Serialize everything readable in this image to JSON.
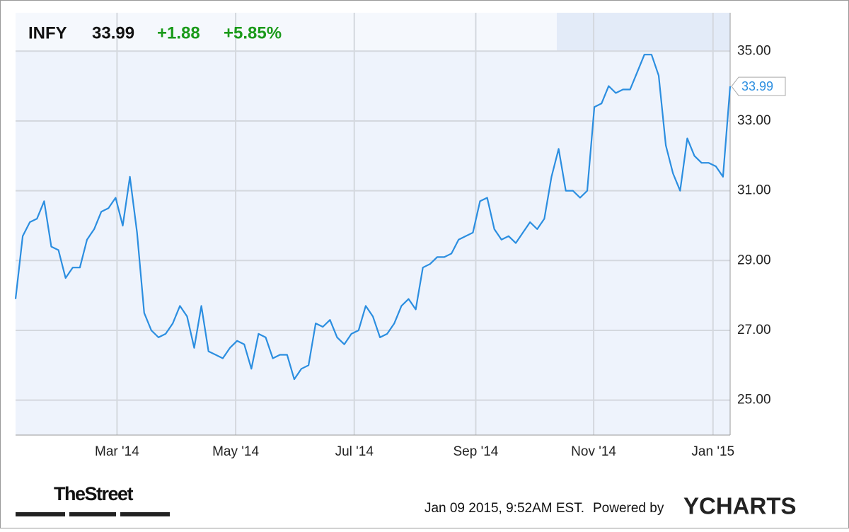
{
  "chart_data": {
    "type": "line",
    "ticker": "INFY",
    "change": "+1.88",
    "change_percent": "+5.85%",
    "timestamp": "Jan 09 2015, 9:52AM EST.",
    "powered_by": "Powered by",
    "brand": "YCHARTS",
    "publisher": "TheStreet",
    "grid": true,
    "series": [
      {
        "name": "INFY",
        "color": "#2b8ee0",
        "values": [
          27.9,
          29.7,
          30.1,
          30.2,
          30.7,
          29.4,
          29.3,
          28.5,
          28.8,
          28.8,
          29.6,
          29.9,
          30.4,
          30.5,
          30.8,
          30.0,
          31.4,
          29.8,
          27.5,
          27.0,
          26.8,
          26.9,
          27.2,
          27.7,
          27.4,
          26.5,
          27.7,
          26.4,
          26.3,
          26.2,
          26.5,
          26.7,
          26.6,
          25.9,
          26.9,
          26.8,
          26.2,
          26.3,
          26.3,
          25.6,
          25.9,
          26.0,
          27.2,
          27.1,
          27.3,
          26.8,
          26.6,
          26.9,
          27.0,
          27.7,
          27.4,
          26.8,
          26.9,
          27.2,
          27.7,
          27.9,
          27.6,
          28.8,
          28.9,
          29.1,
          29.1,
          29.2,
          29.6,
          29.7,
          29.8,
          30.7,
          30.8,
          29.9,
          29.6,
          29.7,
          29.5,
          29.8,
          30.1,
          29.9,
          30.2,
          31.4,
          32.2,
          31.0,
          31.0,
          30.8,
          31.0,
          33.4,
          33.5,
          34.0,
          33.8,
          33.9,
          33.9,
          34.4,
          34.9,
          34.9,
          34.3,
          32.3,
          31.5,
          31.0,
          32.5,
          32.0,
          31.8,
          31.8,
          31.7,
          31.4,
          33.99
        ]
      }
    ],
    "xlim": [
      0,
      100
    ],
    "xticks": [
      {
        "value": 14.2,
        "label": "Mar '14"
      },
      {
        "value": 30.8,
        "label": "May '14"
      },
      {
        "value": 47.4,
        "label": "Jul '14"
      },
      {
        "value": 64.4,
        "label": "Sep '14"
      },
      {
        "value": 80.9,
        "label": "Nov '14"
      },
      {
        "value": 97.6,
        "label": "Jan '15"
      }
    ],
    "ylim": [
      24,
      36.1
    ],
    "yticks": [
      {
        "value": 25,
        "label": "25.00"
      },
      {
        "value": 27,
        "label": "27.00"
      },
      {
        "value": 29,
        "label": "29.00"
      },
      {
        "value": 31,
        "label": "31.00"
      },
      {
        "value": 33,
        "label": "33.00"
      },
      {
        "value": 35,
        "label": "35.00"
      }
    ]
  }
}
